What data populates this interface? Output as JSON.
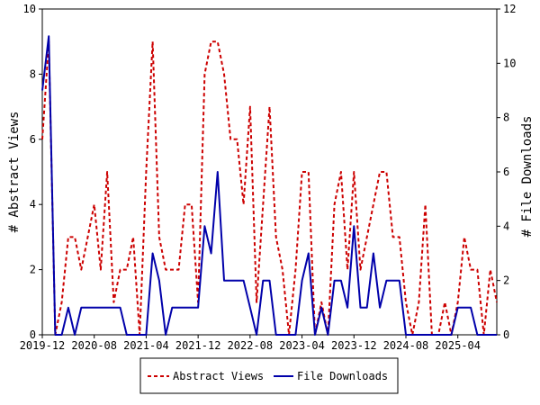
{
  "chart_data": {
    "type": "line",
    "title": "",
    "ylabel_left": "# Abstract Views",
    "ylabel_right": "# File Downloads",
    "ylim_left": [
      0,
      10
    ],
    "ylim_right": [
      0,
      12
    ],
    "yticks_left": [
      "0",
      "2",
      "4",
      "6",
      "8",
      "10"
    ],
    "yticks_right": [
      "0",
      "2",
      "4",
      "6",
      "8",
      "10",
      "12"
    ],
    "x_tick_labels": [
      "2019-12",
      "2020-08",
      "2021-04",
      "2021-12",
      "2022-08",
      "2023-04",
      "2023-12",
      "2024-08",
      "2025-04"
    ],
    "x_range": [
      "2019-12",
      "2025-10"
    ],
    "grid": false,
    "legend_position": "bottom",
    "series": [
      {
        "name": "Abstract Views",
        "axis": "left",
        "color": "#cc0000",
        "style": "dashed",
        "x": [
          "2019-12",
          "2020-01",
          "2020-02",
          "2020-03",
          "2020-04",
          "2020-05",
          "2020-06",
          "2020-07",
          "2020-08",
          "2020-09",
          "2020-10",
          "2020-11",
          "2020-12",
          "2021-01",
          "2021-02",
          "2021-03",
          "2021-04",
          "2021-05",
          "2021-06",
          "2021-07",
          "2021-08",
          "2021-09",
          "2021-10",
          "2021-11",
          "2021-12",
          "2022-01",
          "2022-02",
          "2022-03",
          "2022-04",
          "2022-05",
          "2022-06",
          "2022-07",
          "2022-08",
          "2022-09",
          "2022-10",
          "2022-11",
          "2022-12",
          "2023-01",
          "2023-02",
          "2023-03",
          "2023-04",
          "2023-05",
          "2023-06",
          "2023-07",
          "2023-08",
          "2023-09",
          "2023-10",
          "2023-11",
          "2023-12",
          "2024-01",
          "2024-02",
          "2024-03",
          "2024-04",
          "2024-05",
          "2024-06",
          "2024-07",
          "2024-08",
          "2024-09",
          "2024-10",
          "2024-11",
          "2024-12",
          "2025-01",
          "2025-02",
          "2025-03",
          "2025-04",
          "2025-05",
          "2025-06",
          "2025-07",
          "2025-08",
          "2025-09",
          "2025-10"
        ],
        "values": [
          6,
          9,
          0,
          1,
          3,
          3,
          2,
          3,
          4,
          2,
          5,
          1,
          2,
          2,
          3,
          0,
          5,
          9,
          3,
          2,
          2,
          2,
          4,
          4,
          1,
          8,
          9,
          9,
          8,
          6,
          6,
          4,
          7,
          1,
          4,
          7,
          3,
          2,
          0,
          2,
          5,
          5,
          0,
          1,
          0,
          4,
          5,
          2,
          5,
          2,
          3,
          4,
          5,
          5,
          3,
          3,
          1,
          0,
          1,
          4,
          0,
          0,
          1,
          0,
          1,
          3,
          2,
          2,
          0,
          2,
          1
        ]
      },
      {
        "name": "File Downloads",
        "axis": "right",
        "color": "#0000aa",
        "style": "solid",
        "x": [
          "2019-12",
          "2020-01",
          "2020-02",
          "2020-03",
          "2020-04",
          "2020-05",
          "2020-06",
          "2020-07",
          "2020-08",
          "2020-09",
          "2020-10",
          "2020-11",
          "2020-12",
          "2021-01",
          "2021-02",
          "2021-03",
          "2021-04",
          "2021-05",
          "2021-06",
          "2021-07",
          "2021-08",
          "2021-09",
          "2021-10",
          "2021-11",
          "2021-12",
          "2022-01",
          "2022-02",
          "2022-03",
          "2022-04",
          "2022-05",
          "2022-06",
          "2022-07",
          "2022-08",
          "2022-09",
          "2022-10",
          "2022-11",
          "2022-12",
          "2023-01",
          "2023-02",
          "2023-03",
          "2023-04",
          "2023-05",
          "2023-06",
          "2023-07",
          "2023-08",
          "2023-09",
          "2023-10",
          "2023-11",
          "2023-12",
          "2024-01",
          "2024-02",
          "2024-03",
          "2024-04",
          "2024-05",
          "2024-06",
          "2024-07",
          "2024-08",
          "2024-09",
          "2024-10",
          "2024-11",
          "2024-12",
          "2025-01",
          "2025-02",
          "2025-03",
          "2025-04",
          "2025-05",
          "2025-06",
          "2025-07",
          "2025-08",
          "2025-09",
          "2025-10"
        ],
        "values": [
          9,
          11,
          0,
          0,
          1,
          0,
          1,
          1,
          1,
          1,
          1,
          1,
          1,
          0,
          0,
          0,
          0,
          3,
          2,
          0,
          1,
          1,
          1,
          1,
          1,
          4,
          3,
          6,
          2,
          2,
          2,
          2,
          1,
          0,
          2,
          2,
          0,
          0,
          0,
          0,
          2,
          3,
          0,
          1,
          0,
          2,
          2,
          1,
          4,
          1,
          1,
          3,
          1,
          2,
          2,
          2,
          0,
          0,
          0,
          0,
          0,
          0,
          0,
          0,
          1,
          1,
          1,
          0,
          0,
          0,
          0
        ]
      }
    ]
  }
}
